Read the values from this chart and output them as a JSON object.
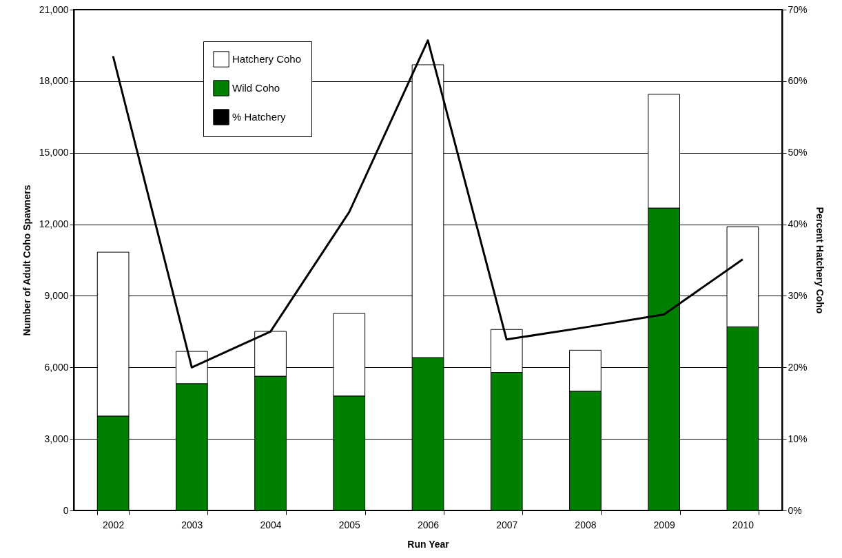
{
  "chart_data": {
    "type": "bar",
    "stacked": true,
    "xlabel": "Run Year",
    "ylabel": "Number of Adult Coho Spawners",
    "y2label": "Percent Hatchery Coho",
    "categories": [
      "2002",
      "2003",
      "2004",
      "2005",
      "2006",
      "2007",
      "2008",
      "2009",
      "2010"
    ],
    "series": [
      {
        "name": "Wild Coho",
        "color": "#008000",
        "values": [
          3960,
          5320,
          5630,
          4800,
          6410,
          5790,
          5000,
          12680,
          7700
        ]
      },
      {
        "name": "Hatchery Coho",
        "color": "#ffffff",
        "values": [
          6870,
          1350,
          1880,
          3460,
          12280,
          1800,
          1720,
          4770,
          4200
        ]
      },
      {
        "name": "% Hatchery",
        "type": "line",
        "axis": "y2",
        "color": "#000000",
        "values": [
          63.5,
          20.0,
          25.0,
          41.7,
          65.7,
          23.9,
          25.6,
          27.4,
          35.1
        ]
      }
    ],
    "ylim": [
      0,
      21000
    ],
    "yticks": [
      0,
      {
        "value": 3000,
        "label": "3,000"
      },
      {
        "value": 6000,
        "label": "6,000"
      },
      {
        "value": 9000,
        "label": "9,000"
      },
      {
        "value": 12000,
        "label": "12,000"
      },
      {
        "value": 15000,
        "label": "15,000"
      },
      {
        "value": 18000,
        "label": "18,000"
      },
      {
        "value": 21000,
        "label": "21,000"
      }
    ],
    "y2lim": [
      0,
      70
    ],
    "y2ticks": [
      {
        "value": 0,
        "label": "0%"
      },
      {
        "value": 10,
        "label": "10%"
      },
      {
        "value": 20,
        "label": "20%"
      },
      {
        "value": 30,
        "label": "30%"
      },
      {
        "value": 40,
        "label": "40%"
      },
      {
        "value": 50,
        "label": "50%"
      },
      {
        "value": 60,
        "label": "60%"
      },
      {
        "value": 70,
        "label": "70%"
      }
    ],
    "grid": "y",
    "legend": "top left",
    "marker": "none",
    "line_style": "solid"
  }
}
